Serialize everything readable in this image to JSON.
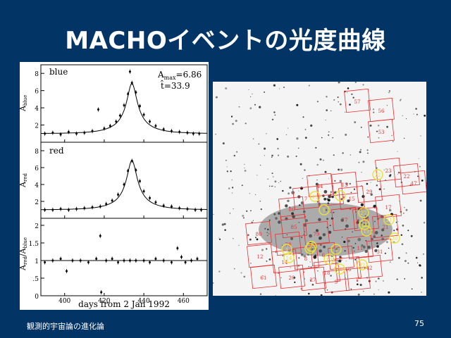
{
  "slide": {
    "title": "MACHOイベントの光度曲線",
    "footer": "観測的宇宙論の進化論",
    "page_number": "75"
  },
  "lightcurve": {
    "panels": [
      {
        "label": "blue",
        "ylabel_main": "A",
        "ylabel_sub": "blue",
        "yticks": [
          "8",
          "6",
          "4",
          "2"
        ]
      },
      {
        "label": "red",
        "ylabel_main": "A",
        "ylabel_sub": "red",
        "yticks": [
          "8",
          "6",
          "4",
          "2"
        ]
      },
      {
        "label": "",
        "ylabel_main": "A",
        "ylabel_sub": "red",
        "ylabel_main2": "/A",
        "ylabel_sub2": "blue",
        "yticks": [
          "2",
          "1.5",
          "1",
          ".5",
          "0"
        ]
      }
    ],
    "amax_label": "A",
    "amax_sub": "max",
    "amax_value": "=6.86",
    "tau_label": "t̂=33.9",
    "xticks": [
      "400",
      "420",
      "440",
      "460"
    ],
    "xlabel": "days from 2 Jan 1992"
  },
  "chart_data": {
    "type": "line",
    "xlim": [
      388,
      472
    ],
    "model": {
      "t0": 434,
      "amax": 6.86,
      "tau": 33.9
    },
    "blue_points": [
      [
        390,
        1.0
      ],
      [
        394,
        1.1
      ],
      [
        398,
        0.9
      ],
      [
        402,
        1.2
      ],
      [
        406,
        1.0
      ],
      [
        410,
        1.1
      ],
      [
        414,
        1.3
      ],
      [
        417,
        3.8
      ],
      [
        420,
        1.6
      ],
      [
        423,
        1.9
      ],
      [
        426,
        2.4
      ],
      [
        428,
        3.1
      ],
      [
        430,
        4.3
      ],
      [
        432,
        5.6
      ],
      [
        433,
        8.2
      ],
      [
        434,
        6.9
      ],
      [
        436,
        5.8
      ],
      [
        438,
        4.2
      ],
      [
        440,
        3.2
      ],
      [
        443,
        2.4
      ],
      [
        446,
        1.9
      ],
      [
        450,
        1.5
      ],
      [
        454,
        1.3
      ],
      [
        458,
        1.2
      ],
      [
        462,
        1.1
      ],
      [
        465,
        1.0
      ],
      [
        468,
        1.0
      ]
    ],
    "red_points": [
      [
        390,
        1.0
      ],
      [
        394,
        1.0
      ],
      [
        398,
        1.1
      ],
      [
        402,
        1.0
      ],
      [
        406,
        1.1
      ],
      [
        410,
        1.2
      ],
      [
        414,
        1.3
      ],
      [
        418,
        1.4
      ],
      [
        421,
        1.7
      ],
      [
        424,
        2.1
      ],
      [
        427,
        2.8
      ],
      [
        430,
        4.0
      ],
      [
        432,
        5.6
      ],
      [
        434,
        6.8
      ],
      [
        436,
        5.7
      ],
      [
        438,
        4.4
      ],
      [
        440,
        3.2
      ],
      [
        443,
        2.4
      ],
      [
        446,
        1.9
      ],
      [
        450,
        1.5
      ],
      [
        454,
        1.4
      ],
      [
        458,
        1.2
      ],
      [
        462,
        1.1
      ],
      [
        466,
        1.0
      ],
      [
        469,
        1.0
      ]
    ],
    "ratio_points": [
      [
        390,
        0.95
      ],
      [
        394,
        1.0
      ],
      [
        398,
        1.05
      ],
      [
        401,
        0.7
      ],
      [
        404,
        1.0
      ],
      [
        408,
        1.0
      ],
      [
        412,
        0.95
      ],
      [
        416,
        1.05
      ],
      [
        418,
        1.7
      ],
      [
        418.5,
        0.1
      ],
      [
        421,
        1.0
      ],
      [
        424,
        1.05
      ],
      [
        427,
        0.95
      ],
      [
        430,
        1.0
      ],
      [
        433,
        1.0
      ],
      [
        436,
        1.0
      ],
      [
        440,
        1.0
      ],
      [
        443,
        0.95
      ],
      [
        446,
        1.05
      ],
      [
        450,
        1.0
      ],
      [
        454,
        0.95
      ],
      [
        457,
        1.35
      ],
      [
        459,
        1.1
      ],
      [
        461,
        0.95
      ],
      [
        464,
        1.0
      ],
      [
        467,
        1.05
      ]
    ]
  },
  "field": {
    "tiles": [
      "57",
      "56",
      "53",
      "23",
      "22",
      "47",
      "44",
      "13",
      "29",
      "17",
      "86",
      "85",
      "80",
      "78",
      "79",
      "77",
      "10",
      "21",
      "12",
      "14",
      "8",
      "6",
      "2",
      "11",
      "31",
      "18",
      "16",
      "42",
      "61",
      "20",
      "27",
      "9",
      "1",
      "7",
      "4",
      "15"
    ],
    "field_ids": [
      "1",
      "9",
      "27",
      "21",
      "20",
      "22",
      "8",
      "6",
      "5",
      "4",
      "14",
      "15",
      "19",
      "18",
      "13",
      "23",
      "32"
    ]
  }
}
